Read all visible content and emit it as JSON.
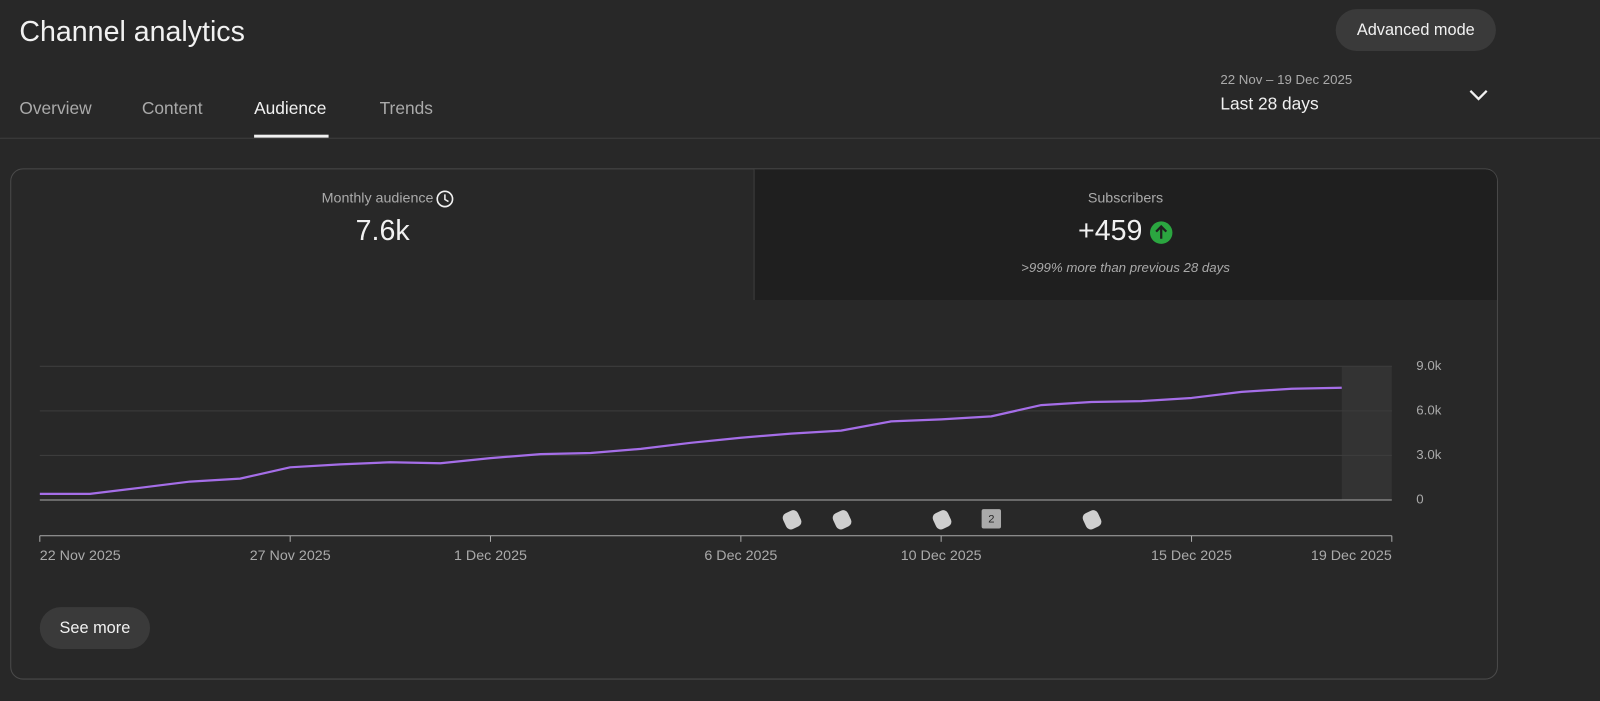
{
  "header": {
    "title": "Channel analytics",
    "button": "Advanced mode"
  },
  "tabs": [
    "Overview",
    "Content",
    "Audience",
    "Trends"
  ],
  "date_range": {
    "range": "22 Nov – 19 Dec 2025",
    "period": "Last 28 days"
  },
  "metrics": [
    {
      "label": "Monthly audience",
      "value": "7.6k"
    },
    {
      "label": "Subscribers",
      "value": "+459",
      "note": ">999% more than previous 28 days"
    }
  ],
  "chart_data": {
    "type": "line",
    "color": "#a56ee8",
    "grid": true,
    "x": [
      "2025-11-22",
      "2025-11-23",
      "2025-11-24",
      "2025-11-25",
      "2025-11-26",
      "2025-11-27",
      "2025-11-28",
      "2025-11-29",
      "2025-11-30",
      "2025-12-01",
      "2025-12-02",
      "2025-12-03",
      "2025-12-04",
      "2025-12-05",
      "2025-12-06",
      "2025-12-07",
      "2025-12-08",
      "2025-12-09",
      "2025-12-10",
      "2025-12-11",
      "2025-12-12",
      "2025-12-13",
      "2025-12-14",
      "2025-12-15",
      "2025-12-16",
      "2025-12-17",
      "2025-12-18",
      "2025-12-19"
    ],
    "values": [
      410,
      410,
      820,
      1240,
      1440,
      2200,
      2400,
      2540,
      2470,
      2820,
      3090,
      3160,
      3440,
      3850,
      4190,
      4470,
      4670,
      5290,
      5430,
      5630,
      6390,
      6600,
      6660,
      6870,
      7280,
      7490,
      7560,
      null
    ],
    "xlim": [
      "2025-11-22",
      "2025-12-19"
    ],
    "xticks": [
      {
        "value": "2025-11-22",
        "label": "22 Nov 2025"
      },
      {
        "value": "2025-11-27",
        "label": "27 Nov 2025"
      },
      {
        "value": "2025-12-01",
        "label": "1 Dec 2025"
      },
      {
        "value": "2025-12-06",
        "label": "6 Dec 2025"
      },
      {
        "value": "2025-12-10",
        "label": "10 Dec 2025"
      },
      {
        "value": "2025-12-15",
        "label": "15 Dec 2025"
      },
      {
        "value": "2025-12-19",
        "label": "19 Dec 2025"
      }
    ],
    "ylim": [
      0,
      9000
    ],
    "yticks": [
      0,
      {
        "value": 3000,
        "label": "3.0k"
      },
      {
        "value": 6000,
        "label": "6.0k"
      },
      {
        "value": 9000,
        "label": "9.0k"
      }
    ],
    "annotations": [
      "2"
    ]
  },
  "see_more": "See more"
}
